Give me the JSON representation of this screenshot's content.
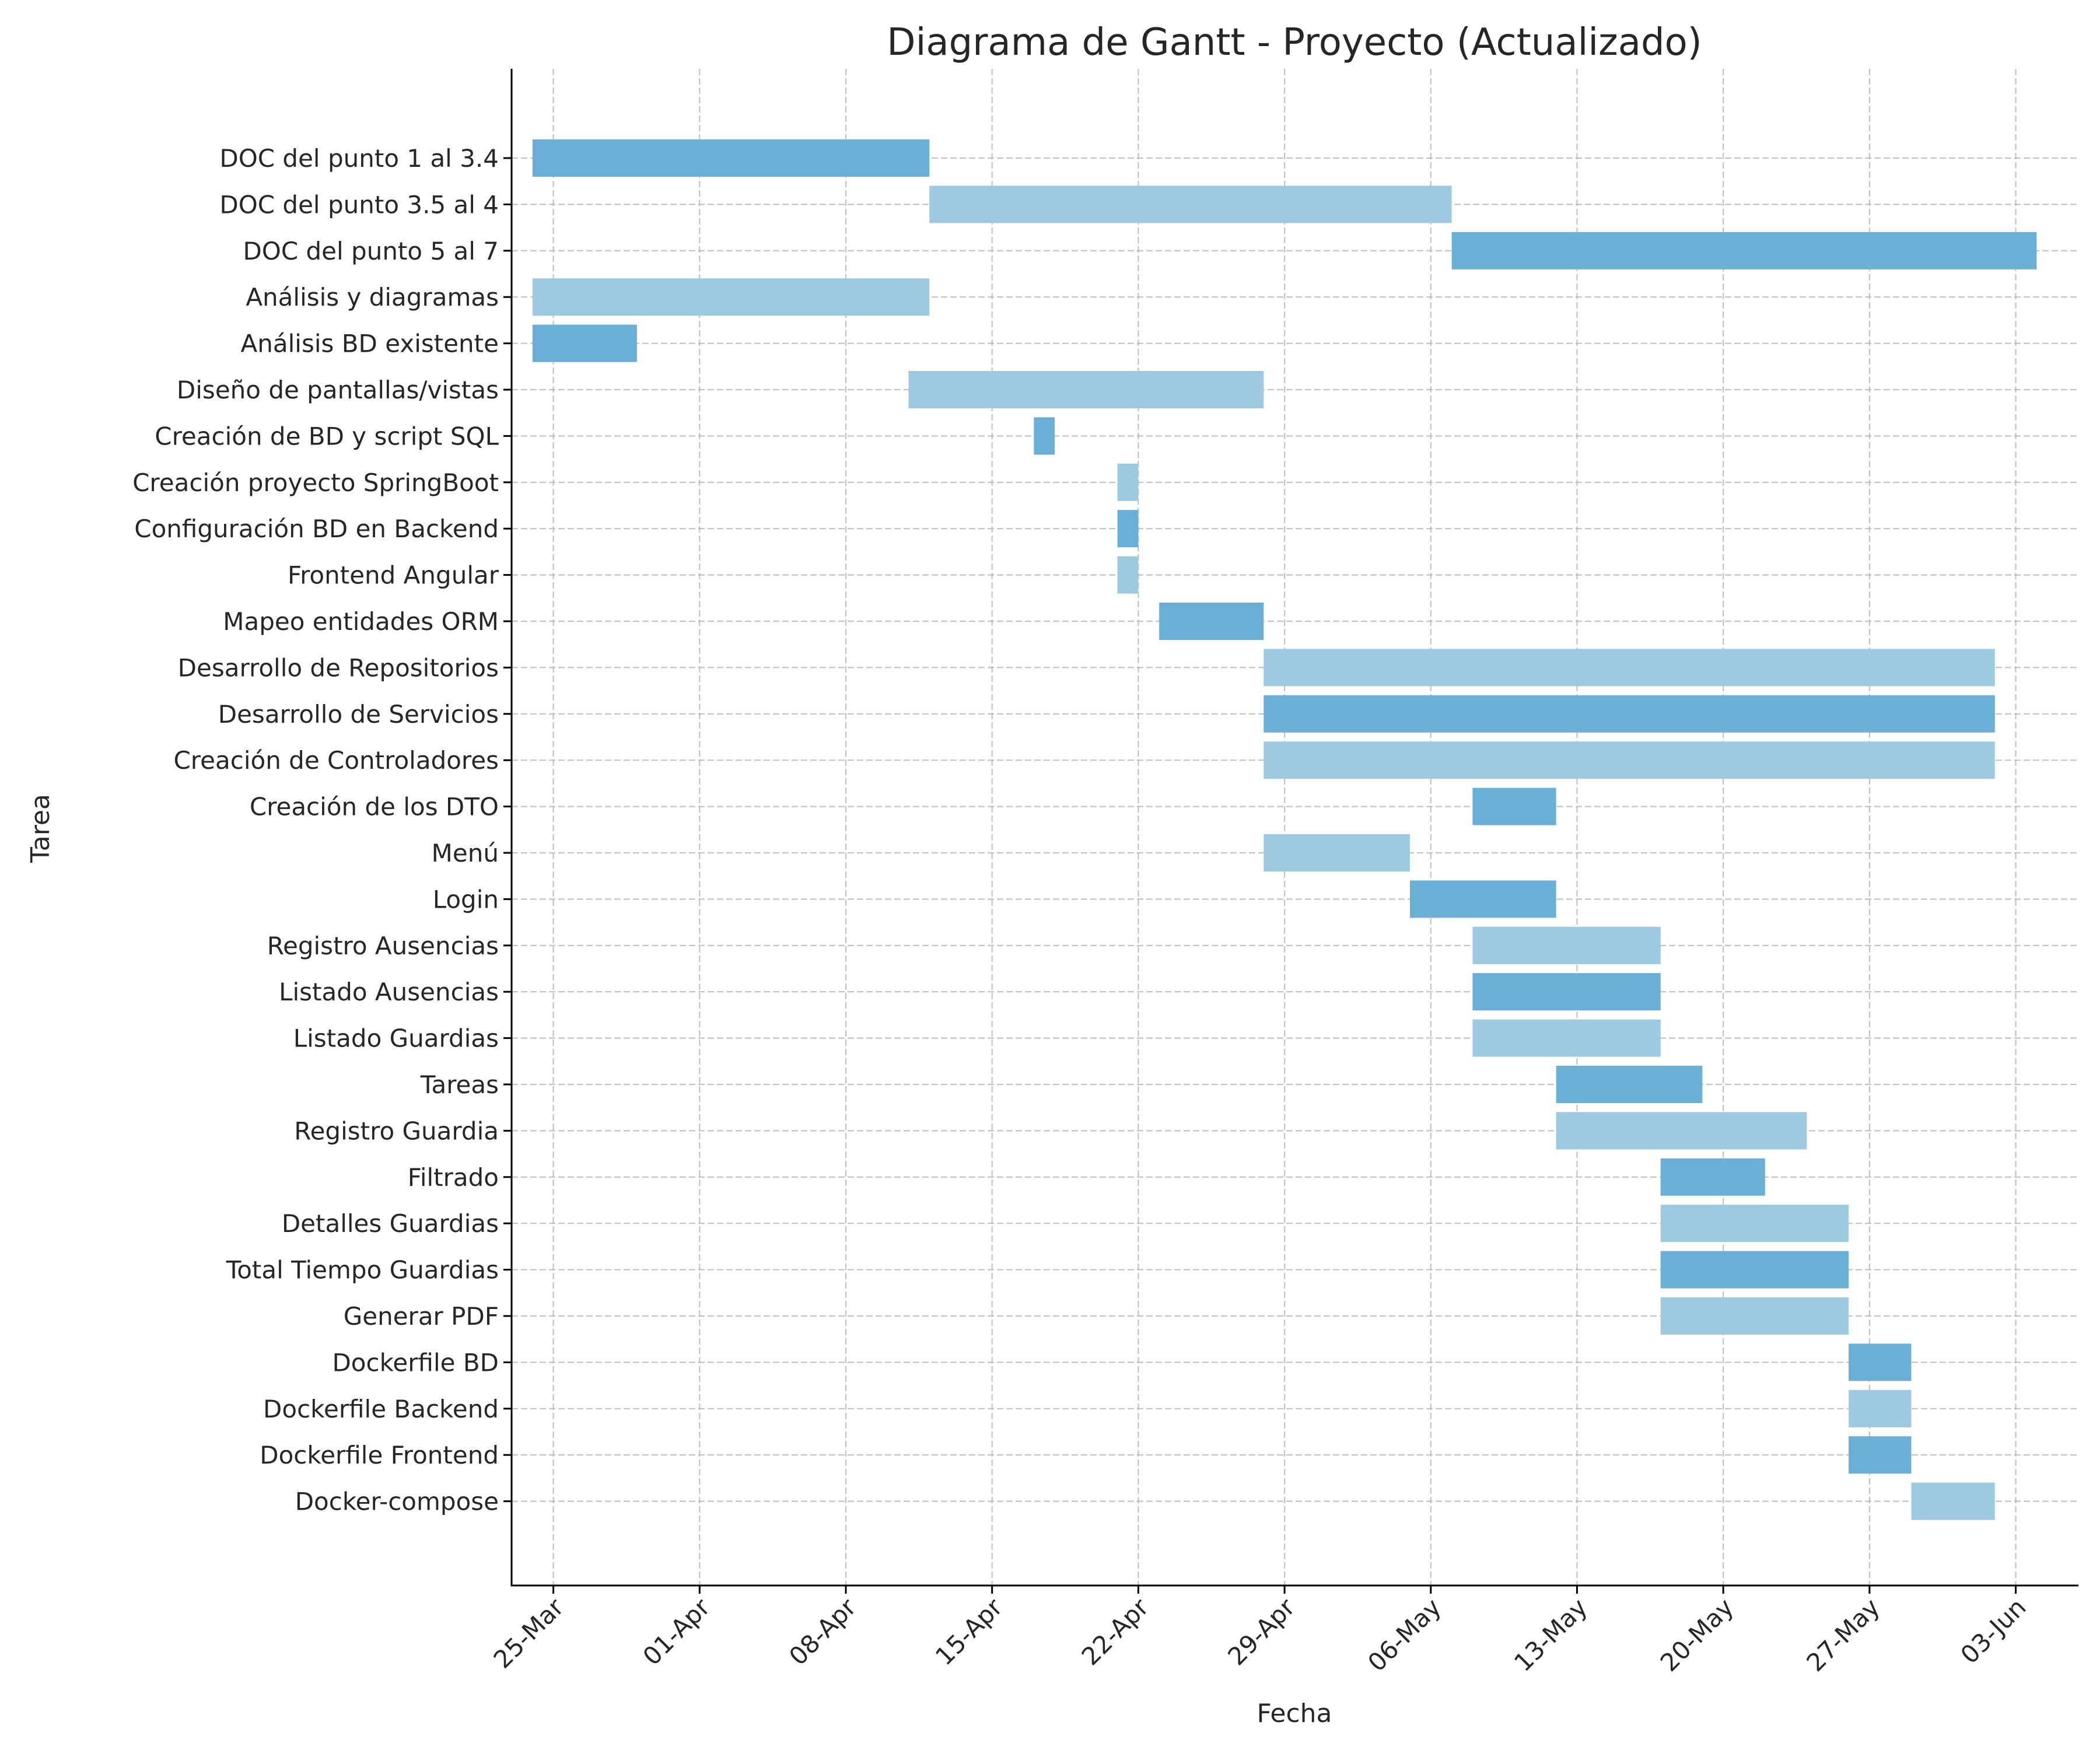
{
  "chart_data": {
    "type": "gantt",
    "title": "Diagrama de Gantt - Proyecto (Actualizado)",
    "xlabel": "Fecha",
    "ylabel": "Tarea",
    "year": "2024",
    "xlim": [
      "2024-03-23",
      "2024-06-06"
    ],
    "x_ticks": [
      {
        "date": "2024-03-25",
        "label": "25-Mar"
      },
      {
        "date": "2024-04-01",
        "label": "01-Apr"
      },
      {
        "date": "2024-04-08",
        "label": "08-Apr"
      },
      {
        "date": "2024-04-15",
        "label": "15-Apr"
      },
      {
        "date": "2024-04-22",
        "label": "22-Apr"
      },
      {
        "date": "2024-04-29",
        "label": "29-Apr"
      },
      {
        "date": "2024-05-06",
        "label": "06-May"
      },
      {
        "date": "2024-05-13",
        "label": "13-May"
      },
      {
        "date": "2024-05-20",
        "label": "20-May"
      },
      {
        "date": "2024-05-27",
        "label": "27-May"
      },
      {
        "date": "2024-06-03",
        "label": "03-Jun"
      }
    ],
    "grid": true,
    "colors": {
      "dark": "#6baed6",
      "light": "#9ecae1"
    },
    "tasks": [
      {
        "name": "DOC del punto 1 al 3.4",
        "start": "2024-03-24",
        "end": "2024-04-12",
        "shade": "dark"
      },
      {
        "name": "DOC del punto 3.5 al 4",
        "start": "2024-04-12",
        "end": "2024-05-07",
        "shade": "light"
      },
      {
        "name": "DOC del punto 5 al 7",
        "start": "2024-05-07",
        "end": "2024-06-04",
        "shade": "dark"
      },
      {
        "name": "Análisis y diagramas",
        "start": "2024-03-24",
        "end": "2024-04-12",
        "shade": "light"
      },
      {
        "name": "Análisis BD existente",
        "start": "2024-03-24",
        "end": "2024-03-29",
        "shade": "dark"
      },
      {
        "name": "Diseño de pantallas/vistas",
        "start": "2024-04-11",
        "end": "2024-04-28",
        "shade": "light"
      },
      {
        "name": "Creación de BD y script SQL",
        "start": "2024-04-17",
        "end": "2024-04-18",
        "shade": "dark"
      },
      {
        "name": "Creación proyecto SpringBoot",
        "start": "2024-04-21",
        "end": "2024-04-22",
        "shade": "light"
      },
      {
        "name": "Configuración BD en Backend",
        "start": "2024-04-21",
        "end": "2024-04-22",
        "shade": "dark"
      },
      {
        "name": "Frontend Angular",
        "start": "2024-04-21",
        "end": "2024-04-22",
        "shade": "light"
      },
      {
        "name": "Mapeo entidades ORM",
        "start": "2024-04-23",
        "end": "2024-04-28",
        "shade": "dark"
      },
      {
        "name": "Desarrollo de Repositorios",
        "start": "2024-04-28",
        "end": "2024-06-02",
        "shade": "light"
      },
      {
        "name": "Desarrollo de Servicios",
        "start": "2024-04-28",
        "end": "2024-06-02",
        "shade": "dark"
      },
      {
        "name": "Creación de Controladores",
        "start": "2024-04-28",
        "end": "2024-06-02",
        "shade": "light"
      },
      {
        "name": "Creación de los DTO",
        "start": "2024-05-08",
        "end": "2024-05-12",
        "shade": "dark"
      },
      {
        "name": "Menú",
        "start": "2024-04-28",
        "end": "2024-05-05",
        "shade": "light"
      },
      {
        "name": "Login",
        "start": "2024-05-05",
        "end": "2024-05-12",
        "shade": "dark"
      },
      {
        "name": "Registro Ausencias",
        "start": "2024-05-08",
        "end": "2024-05-17",
        "shade": "light"
      },
      {
        "name": "Listado Ausencias",
        "start": "2024-05-08",
        "end": "2024-05-17",
        "shade": "dark"
      },
      {
        "name": "Listado Guardias",
        "start": "2024-05-08",
        "end": "2024-05-17",
        "shade": "light"
      },
      {
        "name": "Tareas",
        "start": "2024-05-12",
        "end": "2024-05-19",
        "shade": "dark"
      },
      {
        "name": "Registro Guardia",
        "start": "2024-05-12",
        "end": "2024-05-24",
        "shade": "light"
      },
      {
        "name": "Filtrado",
        "start": "2024-05-17",
        "end": "2024-05-22",
        "shade": "dark"
      },
      {
        "name": "Detalles Guardias",
        "start": "2024-05-17",
        "end": "2024-05-26",
        "shade": "light"
      },
      {
        "name": "Total Tiempo Guardias",
        "start": "2024-05-17",
        "end": "2024-05-26",
        "shade": "dark"
      },
      {
        "name": "Generar PDF",
        "start": "2024-05-17",
        "end": "2024-05-26",
        "shade": "light"
      },
      {
        "name": "Dockerfile BD",
        "start": "2024-05-26",
        "end": "2024-05-29",
        "shade": "dark"
      },
      {
        "name": "Dockerfile Backend",
        "start": "2024-05-26",
        "end": "2024-05-29",
        "shade": "light"
      },
      {
        "name": "Dockerfile Frontend",
        "start": "2024-05-26",
        "end": "2024-05-29",
        "shade": "dark"
      },
      {
        "name": "Docker-compose",
        "start": "2024-05-29",
        "end": "2024-06-02",
        "shade": "light"
      }
    ]
  }
}
